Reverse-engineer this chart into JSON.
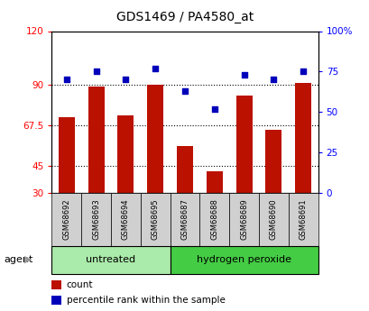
{
  "title": "GDS1469 / PA4580_at",
  "samples": [
    "GSM68692",
    "GSM68693",
    "GSM68694",
    "GSM68695",
    "GSM68687",
    "GSM68688",
    "GSM68689",
    "GSM68690",
    "GSM68691"
  ],
  "counts": [
    72,
    89,
    73,
    90,
    56,
    42,
    84,
    65,
    91
  ],
  "percentiles": [
    70,
    75,
    70,
    77,
    63,
    52,
    73,
    70,
    75
  ],
  "groups": [
    {
      "label": "untreated",
      "indices": [
        0,
        1,
        2,
        3
      ],
      "color": "#aaeaaa"
    },
    {
      "label": "hydrogen peroxide",
      "indices": [
        4,
        5,
        6,
        7,
        8
      ],
      "color": "#44cc44"
    }
  ],
  "bar_color": "#bb1100",
  "dot_color": "#0000bb",
  "left_ylim": [
    30,
    120
  ],
  "left_yticks": [
    30,
    45,
    67.5,
    90,
    120
  ],
  "left_ytick_labels": [
    "30",
    "45",
    "67.5",
    "90",
    "120"
  ],
  "right_ylim": [
    0,
    100
  ],
  "right_yticks": [
    0,
    25,
    50,
    75,
    100
  ],
  "right_ytick_labels": [
    "0",
    "25",
    "50",
    "75",
    "100%"
  ],
  "hlines": [
    45,
    67.5,
    90
  ],
  "bar_width": 0.55,
  "agent_label": "agent",
  "legend_count_label": "count",
  "legend_pct_label": "percentile rank within the sample"
}
